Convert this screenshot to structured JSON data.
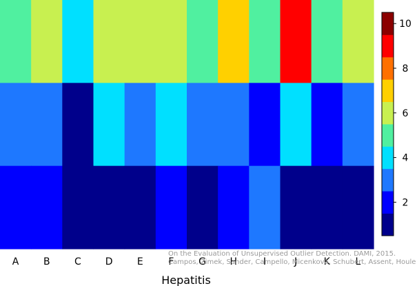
{
  "chart_data": {
    "type": "heatmap",
    "title": "",
    "xlabel": "Hepatitis",
    "ylabel": "",
    "x_categories": [
      "A",
      "B",
      "C",
      "D",
      "E",
      "F",
      "G",
      "H",
      "I",
      "J",
      "K",
      "L"
    ],
    "rows_top_to_bottom": [
      [
        5,
        6,
        4,
        6,
        6,
        6,
        5,
        7,
        5,
        9,
        5,
        6
      ],
      [
        3,
        3,
        1,
        4,
        3,
        4,
        3,
        3,
        2,
        4,
        2,
        3
      ],
      [
        2,
        2,
        1,
        1,
        1,
        2,
        1,
        2,
        3,
        1,
        1,
        1
      ]
    ],
    "colorbar": {
      "ticks": [
        2,
        4,
        6,
        8,
        10
      ],
      "range": [
        0.5,
        10.5
      ],
      "colors": [
        "#00008b",
        "#0000ff",
        "#1e78ff",
        "#00e0ff",
        "#50f0a0",
        "#c8f050",
        "#ffd000",
        "#ff7000",
        "#ff0000",
        "#8b0000"
      ]
    },
    "caption_lines": [
      "On the Evaluation of Unsupervised Outlier Detection. DAMI, 2015.",
      "Campos, Zimek, Sander, Campello, Micenková, Schubert, Assent, Houle"
    ]
  }
}
